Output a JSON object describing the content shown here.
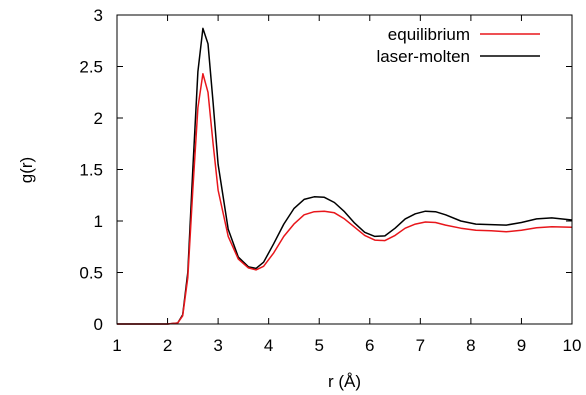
{
  "chart_data": {
    "type": "line",
    "xlabel": "r (Å)",
    "ylabel": "g(r)",
    "xlim": [
      1,
      10
    ],
    "ylim": [
      0,
      3
    ],
    "xticks": [
      "1",
      "2",
      "3",
      "4",
      "5",
      "6",
      "7",
      "8",
      "9",
      "10"
    ],
    "yticks": [
      "0",
      "0.5",
      "1",
      "1.5",
      "2",
      "2.5",
      "3"
    ],
    "grid": false,
    "legend_position": "top-right",
    "series": [
      {
        "name": "equilibrium",
        "color": "#e8161b",
        "points": [
          [
            1.0,
            0.0
          ],
          [
            1.5,
            0.0
          ],
          [
            2.0,
            0.0
          ],
          [
            2.2,
            0.01
          ],
          [
            2.3,
            0.08
          ],
          [
            2.4,
            0.45
          ],
          [
            2.5,
            1.3
          ],
          [
            2.6,
            2.1
          ],
          [
            2.7,
            2.43
          ],
          [
            2.8,
            2.25
          ],
          [
            2.9,
            1.75
          ],
          [
            3.0,
            1.3
          ],
          [
            3.2,
            0.85
          ],
          [
            3.4,
            0.63
          ],
          [
            3.6,
            0.545
          ],
          [
            3.75,
            0.525
          ],
          [
            3.9,
            0.56
          ],
          [
            4.1,
            0.69
          ],
          [
            4.3,
            0.85
          ],
          [
            4.5,
            0.97
          ],
          [
            4.7,
            1.06
          ],
          [
            4.9,
            1.09
          ],
          [
            5.1,
            1.095
          ],
          [
            5.3,
            1.08
          ],
          [
            5.5,
            1.02
          ],
          [
            5.7,
            0.94
          ],
          [
            5.9,
            0.86
          ],
          [
            6.1,
            0.815
          ],
          [
            6.3,
            0.81
          ],
          [
            6.5,
            0.86
          ],
          [
            6.7,
            0.93
          ],
          [
            6.9,
            0.97
          ],
          [
            7.1,
            0.99
          ],
          [
            7.3,
            0.985
          ],
          [
            7.5,
            0.96
          ],
          [
            7.8,
            0.93
          ],
          [
            8.1,
            0.91
          ],
          [
            8.4,
            0.905
          ],
          [
            8.7,
            0.895
          ],
          [
            9.0,
            0.91
          ],
          [
            9.3,
            0.935
          ],
          [
            9.6,
            0.945
          ],
          [
            10.0,
            0.94
          ]
        ]
      },
      {
        "name": "laser-molten",
        "color": "#000000",
        "points": [
          [
            1.0,
            0.0
          ],
          [
            1.5,
            0.0
          ],
          [
            2.0,
            0.0
          ],
          [
            2.2,
            0.01
          ],
          [
            2.3,
            0.09
          ],
          [
            2.4,
            0.5
          ],
          [
            2.5,
            1.5
          ],
          [
            2.6,
            2.45
          ],
          [
            2.7,
            2.87
          ],
          [
            2.8,
            2.72
          ],
          [
            2.9,
            2.15
          ],
          [
            3.0,
            1.55
          ],
          [
            3.2,
            0.92
          ],
          [
            3.4,
            0.65
          ],
          [
            3.6,
            0.555
          ],
          [
            3.75,
            0.54
          ],
          [
            3.9,
            0.6
          ],
          [
            4.1,
            0.78
          ],
          [
            4.3,
            0.97
          ],
          [
            4.5,
            1.12
          ],
          [
            4.7,
            1.21
          ],
          [
            4.9,
            1.235
          ],
          [
            5.1,
            1.23
          ],
          [
            5.3,
            1.18
          ],
          [
            5.5,
            1.09
          ],
          [
            5.7,
            0.98
          ],
          [
            5.9,
            0.89
          ],
          [
            6.1,
            0.85
          ],
          [
            6.3,
            0.855
          ],
          [
            6.5,
            0.93
          ],
          [
            6.7,
            1.02
          ],
          [
            6.9,
            1.07
          ],
          [
            7.1,
            1.095
          ],
          [
            7.3,
            1.09
          ],
          [
            7.5,
            1.06
          ],
          [
            7.8,
            1.0
          ],
          [
            8.1,
            0.97
          ],
          [
            8.4,
            0.965
          ],
          [
            8.7,
            0.96
          ],
          [
            9.0,
            0.985
          ],
          [
            9.3,
            1.02
          ],
          [
            9.6,
            1.03
          ],
          [
            10.0,
            1.01
          ]
        ]
      }
    ]
  }
}
